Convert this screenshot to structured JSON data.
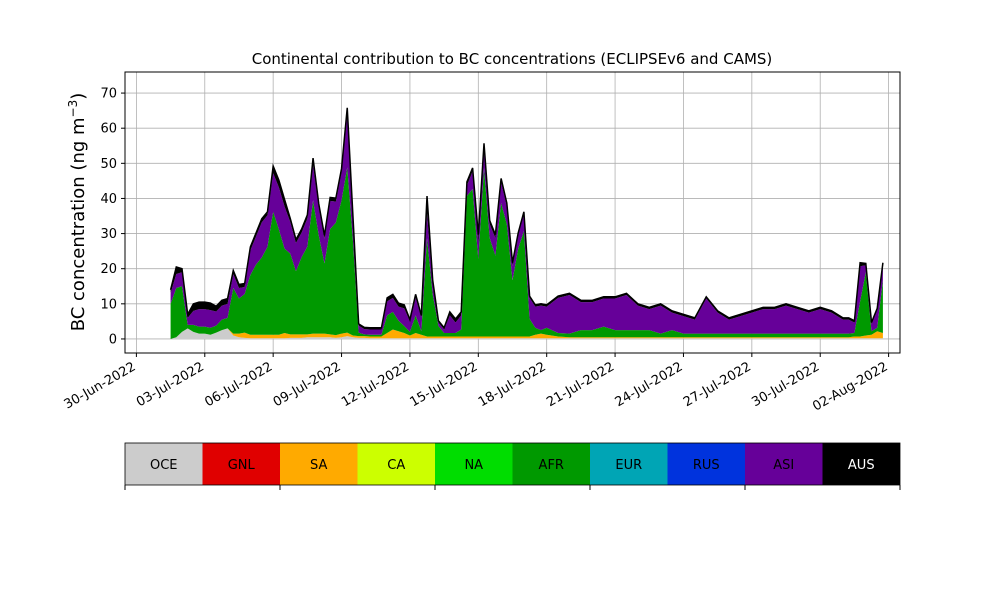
{
  "chart_data": {
    "type": "area",
    "stacked": true,
    "title": "Continental contribution to BC concentrations (ECLIPSEv6 and CAMS)",
    "xlabel": "",
    "ylabel_main": "BC concentration (ng m",
    "ylabel_sup": "−3",
    "ylabel_end": ")",
    "xlim": [
      "2022-06-29T12:00",
      "2022-08-02T12:00"
    ],
    "ylim": [
      -4,
      76
    ],
    "grid": true,
    "x_ticks": [
      "2022-06-30",
      "2022-07-03",
      "2022-07-06",
      "2022-07-09",
      "2022-07-12",
      "2022-07-15",
      "2022-07-18",
      "2022-07-21",
      "2022-07-24",
      "2022-07-27",
      "2022-07-30",
      "2022-08-02"
    ],
    "x_tick_labels": [
      "30-Jun-2022",
      "03-Jul-2022",
      "06-Jul-2022",
      "09-Jul-2022",
      "12-Jul-2022",
      "15-Jul-2022",
      "18-Jul-2022",
      "21-Jul-2022",
      "24-Jul-2022",
      "27-Jul-2022",
      "30-Jul-2022",
      "02-Aug-2022"
    ],
    "y_ticks": [
      0,
      10,
      20,
      30,
      40,
      50,
      60,
      70
    ],
    "x": [
      "2022-07-01T12:00",
      "2022-07-01T18:00",
      "2022-07-02T00:00",
      "2022-07-02T06:00",
      "2022-07-02T12:00",
      "2022-07-02T18:00",
      "2022-07-03T00:00",
      "2022-07-03T06:00",
      "2022-07-03T12:00",
      "2022-07-03T18:00",
      "2022-07-04T00:00",
      "2022-07-04T06:00",
      "2022-07-04T12:00",
      "2022-07-04T18:00",
      "2022-07-05T00:00",
      "2022-07-05T06:00",
      "2022-07-05T12:00",
      "2022-07-05T18:00",
      "2022-07-06T00:00",
      "2022-07-06T06:00",
      "2022-07-06T12:00",
      "2022-07-06T18:00",
      "2022-07-07T00:00",
      "2022-07-07T06:00",
      "2022-07-07T12:00",
      "2022-07-07T18:00",
      "2022-07-08T00:00",
      "2022-07-08T06:00",
      "2022-07-08T12:00",
      "2022-07-08T18:00",
      "2022-07-09T00:00",
      "2022-07-09T06:00",
      "2022-07-09T12:00",
      "2022-07-09T18:00",
      "2022-07-10T00:00",
      "2022-07-10T06:00",
      "2022-07-10T12:00",
      "2022-07-10T18:00",
      "2022-07-11T00:00",
      "2022-07-11T06:00",
      "2022-07-11T12:00",
      "2022-07-11T18:00",
      "2022-07-12T00:00",
      "2022-07-12T06:00",
      "2022-07-12T12:00",
      "2022-07-12T18:00",
      "2022-07-13T00:00",
      "2022-07-13T06:00",
      "2022-07-13T12:00",
      "2022-07-13T18:00",
      "2022-07-14T00:00",
      "2022-07-14T06:00",
      "2022-07-14T12:00",
      "2022-07-14T18:00",
      "2022-07-15T00:00",
      "2022-07-15T06:00",
      "2022-07-15T12:00",
      "2022-07-15T18:00",
      "2022-07-16T00:00",
      "2022-07-16T06:00",
      "2022-07-16T12:00",
      "2022-07-16T18:00",
      "2022-07-17T00:00",
      "2022-07-17T06:00",
      "2022-07-17T12:00",
      "2022-07-17T18:00",
      "2022-07-18T00:00",
      "2022-07-18T12:00",
      "2022-07-19T00:00",
      "2022-07-19T12:00",
      "2022-07-20T00:00",
      "2022-07-20T12:00",
      "2022-07-21T00:00",
      "2022-07-21T12:00",
      "2022-07-22T00:00",
      "2022-07-22T12:00",
      "2022-07-23T00:00",
      "2022-07-23T12:00",
      "2022-07-24T00:00",
      "2022-07-24T12:00",
      "2022-07-25T00:00",
      "2022-07-25T12:00",
      "2022-07-26T00:00",
      "2022-07-26T12:00",
      "2022-07-27T00:00",
      "2022-07-27T12:00",
      "2022-07-28T00:00",
      "2022-07-28T12:00",
      "2022-07-29T00:00",
      "2022-07-29T12:00",
      "2022-07-30T00:00",
      "2022-07-30T12:00",
      "2022-07-31T00:00",
      "2022-07-31T06:00",
      "2022-07-31T12:00",
      "2022-07-31T18:00",
      "2022-08-01T00:00",
      "2022-08-01T06:00",
      "2022-08-01T12:00",
      "2022-08-01T18:00"
    ],
    "series": [
      {
        "name": "OCE",
        "color": "#cccccc",
        "values": [
          0,
          0.5,
          2,
          3,
          2,
          1.5,
          1.5,
          1.2,
          1.8,
          2.5,
          3,
          1,
          0.5,
          0.3,
          0.2,
          0.2,
          0.2,
          0.2,
          0.2,
          0.2,
          0.2,
          0.3,
          0.3,
          0.3,
          0.5,
          0.5,
          0.5,
          0.5,
          0.5,
          0.3,
          0.5,
          0.8,
          0.5,
          0.3,
          0.3,
          0.2,
          0.2,
          0.2,
          0.2,
          0.2,
          0.2,
          0.2,
          0.2,
          0.2,
          0.2,
          0.2,
          0.2,
          0.2,
          0.2,
          0.2,
          0.2,
          0.2,
          0.2,
          0.2,
          0.2,
          0.2,
          0.2,
          0.2,
          0.2,
          0.2,
          0.2,
          0.2,
          0.2,
          0.2,
          0.2,
          0.2,
          0.2,
          0.2,
          0.2,
          0.2,
          0.2,
          0.2,
          0.2,
          0.2,
          0.2,
          0.2,
          0.2,
          0.2,
          0.2,
          0.2,
          0.2,
          0.2,
          0.2,
          0.2,
          0.2,
          0.2,
          0.2,
          0.2,
          0.2,
          0.2,
          0.2,
          0.2,
          0.2,
          0.2,
          0.2,
          0.2,
          0.2,
          0.2,
          0.2,
          0.2
        ]
      },
      {
        "name": "GNL",
        "color": "#e00000",
        "values": [
          0,
          0,
          0,
          0,
          0,
          0,
          0,
          0,
          0,
          0,
          0,
          0,
          0,
          0,
          0,
          0,
          0,
          0,
          0,
          0,
          0,
          0,
          0,
          0,
          0,
          0,
          0,
          0,
          0,
          0,
          0,
          0,
          0,
          0,
          0,
          0,
          0,
          0,
          0,
          0,
          0,
          0,
          0,
          0,
          0,
          0,
          0,
          0,
          0,
          0,
          0,
          0,
          0,
          0,
          0,
          0,
          0,
          0,
          0,
          0,
          0,
          0,
          0,
          0,
          0,
          0,
          0,
          0,
          0,
          0,
          0,
          0,
          0,
          0,
          0,
          0,
          0,
          0,
          0,
          0,
          0,
          0,
          0,
          0,
          0,
          0,
          0,
          0,
          0,
          0,
          0,
          0,
          0,
          0,
          0,
          0,
          0,
          0,
          0,
          0
        ]
      },
      {
        "name": "SA",
        "color": "#ffaa00",
        "values": [
          0,
          0,
          0,
          0,
          0,
          0,
          0,
          0,
          0,
          0,
          0,
          0.5,
          1,
          1.5,
          1,
          1,
          1,
          1,
          1,
          1,
          1.5,
          1,
          1,
          1,
          0.8,
          1,
          1,
          1,
          0.8,
          0.8,
          1,
          1,
          0.5,
          0.5,
          0.5,
          0.5,
          0.5,
          0.5,
          1.5,
          2.5,
          2,
          1.5,
          0.8,
          1.5,
          1,
          0.5,
          0.5,
          0.5,
          0.5,
          0.5,
          0.5,
          0.5,
          0.5,
          0.5,
          0.5,
          0.5,
          0.5,
          0.5,
          0.5,
          0.5,
          0.5,
          0.5,
          0.5,
          0.5,
          1,
          1.3,
          1,
          0.5,
          0.3,
          0.3,
          0.3,
          0.3,
          0.3,
          0.3,
          0.3,
          0.3,
          0.3,
          0.3,
          0.3,
          0.3,
          0.3,
          0.3,
          0.3,
          0.3,
          0.3,
          0.3,
          0.3,
          0.3,
          0.3,
          0.3,
          0.3,
          0.3,
          0.3,
          0.3,
          0.5,
          0.5,
          0.8,
          1,
          2,
          1.5
        ]
      },
      {
        "name": "CA",
        "color": "#ccff00",
        "values": [
          0,
          0,
          0,
          0,
          0,
          0,
          0,
          0,
          0,
          0,
          0,
          0,
          0,
          0,
          0,
          0,
          0,
          0,
          0,
          0,
          0,
          0,
          0,
          0,
          0,
          0,
          0,
          0,
          0,
          0,
          0,
          0,
          0,
          0,
          0,
          0,
          0,
          0,
          0,
          0,
          0,
          0,
          0,
          0,
          0,
          0,
          0,
          0,
          0,
          0,
          0,
          0,
          0,
          0,
          0,
          0,
          0,
          0,
          0,
          0,
          0,
          0,
          0,
          0,
          0,
          0,
          0,
          0,
          0,
          0,
          0,
          0,
          0,
          0,
          0,
          0,
          0,
          0,
          0,
          0,
          0,
          0,
          0,
          0,
          0,
          0,
          0,
          0,
          0,
          0,
          0,
          0,
          0,
          0,
          0,
          0,
          0,
          0,
          0,
          0
        ]
      },
      {
        "name": "NA",
        "color": "#00dd00",
        "values": [
          0,
          0,
          0,
          0,
          0,
          0,
          0,
          0,
          0,
          0,
          0,
          0,
          0,
          0,
          0,
          0,
          0,
          0,
          0,
          0,
          0,
          0,
          0,
          0,
          0,
          0,
          0,
          0,
          0,
          0,
          0,
          0,
          0,
          0,
          0,
          0,
          0,
          0,
          0,
          0,
          0,
          0,
          0,
          0,
          0,
          0,
          0,
          0,
          0,
          0,
          0,
          0,
          0,
          0,
          0,
          0,
          0,
          0,
          0,
          0,
          0,
          0,
          0,
          0,
          0,
          0,
          0,
          0,
          0,
          0,
          0,
          0,
          0,
          0,
          0,
          0,
          0,
          0,
          0,
          0,
          0,
          0,
          0,
          0,
          0,
          0,
          0,
          0,
          0,
          0,
          0,
          0,
          0,
          0,
          0,
          0,
          0,
          0,
          0,
          0
        ]
      },
      {
        "name": "AFR",
        "color": "#009900",
        "values": [
          10,
          14,
          13,
          1,
          2,
          2,
          2,
          2,
          2,
          3,
          3,
          13,
          10,
          11,
          17,
          20,
          22,
          25,
          35,
          30,
          24,
          23,
          18,
          22,
          25,
          38,
          28,
          20,
          30,
          32,
          38,
          47,
          27,
          1,
          0.5,
          0.5,
          0.5,
          0.5,
          5,
          5,
          3,
          2,
          1,
          5,
          1,
          28,
          12,
          3,
          1,
          1,
          1,
          2,
          40,
          42,
          22,
          48,
          28,
          23,
          38,
          32,
          16,
          25,
          30,
          5,
          2,
          1,
          2,
          1,
          1,
          2,
          2,
          3,
          2,
          2,
          2,
          2,
          1,
          2,
          1,
          1,
          1,
          1,
          1,
          1,
          1,
          1,
          1,
          1,
          1,
          1,
          1,
          1,
          1,
          1,
          1,
          10,
          18,
          1,
          1,
          15
        ]
      },
      {
        "name": "EUR",
        "color": "#00a5b5",
        "values": [
          0,
          0,
          0,
          0,
          0,
          0,
          0,
          0,
          0,
          0,
          0,
          0,
          0,
          0,
          0,
          0,
          0,
          0,
          0,
          0,
          0,
          0,
          0,
          0,
          0,
          0,
          0,
          0,
          0,
          0,
          0,
          0,
          0,
          0,
          0,
          0,
          0,
          0,
          0,
          0,
          0,
          0,
          0,
          0,
          0,
          0,
          0,
          0,
          0,
          0,
          0,
          0,
          0,
          0,
          0,
          0,
          0,
          0,
          0,
          0,
          0,
          0,
          0,
          0,
          0,
          0,
          0,
          0,
          0,
          0,
          0,
          0,
          0,
          0,
          0,
          0,
          0,
          0,
          0,
          0,
          0,
          0,
          0,
          0,
          0,
          0,
          0,
          0,
          0,
          0,
          0,
          0,
          0,
          0,
          0,
          0,
          0,
          0,
          0,
          0
        ]
      },
      {
        "name": "RUS",
        "color": "#0033dd",
        "values": [
          0,
          0,
          0,
          0,
          0,
          0,
          0,
          0,
          0,
          0,
          0,
          0,
          0,
          0,
          0,
          0,
          0,
          0,
          0,
          0,
          0,
          0,
          0,
          0,
          0,
          0,
          0,
          0,
          0,
          0,
          0,
          0,
          0,
          0,
          0,
          0,
          0,
          0,
          0,
          0,
          0,
          0,
          0,
          0,
          0,
          0,
          0,
          0,
          0,
          0,
          0,
          0,
          0,
          0,
          0,
          0,
          0,
          0,
          0,
          0,
          0,
          0,
          0,
          0,
          0,
          0,
          0,
          0,
          0,
          0,
          0,
          0,
          0,
          0,
          0,
          0,
          0,
          0,
          0,
          0,
          0,
          0,
          0,
          0,
          0,
          0,
          0,
          0,
          0,
          0,
          0,
          0,
          0,
          0,
          0,
          0,
          0,
          0,
          0,
          0
        ]
      },
      {
        "name": "ASI",
        "color": "#660099",
        "values": [
          3,
          4,
          4,
          2,
          4,
          5,
          5,
          5,
          4,
          4,
          4,
          4,
          3,
          2,
          7,
          8,
          10,
          9,
          11,
          12,
          12,
          9,
          8,
          7,
          8,
          10,
          8,
          7,
          8,
          6,
          8,
          15,
          6,
          2,
          1.5,
          1.5,
          1.5,
          1.5,
          4,
          4,
          4,
          5,
          3,
          5,
          4,
          7,
          3,
          1,
          1,
          5,
          3,
          4,
          3,
          5,
          5,
          5,
          4,
          5,
          6,
          5,
          4,
          4,
          5,
          6,
          6,
          7,
          6,
          10,
          11,
          8,
          8,
          8,
          9,
          10,
          7,
          6,
          8,
          5,
          5,
          4,
          10,
          6,
          4,
          5,
          6,
          7,
          7,
          8,
          7,
          6,
          7,
          6,
          4,
          4,
          3,
          10,
          2,
          2,
          5,
          4
        ]
      },
      {
        "name": "AUS",
        "color": "#000000",
        "values": [
          1,
          2,
          1,
          1,
          2,
          2,
          2,
          2,
          1.5,
          1.5,
          1.5,
          1,
          1,
          1,
          1,
          1,
          1,
          1,
          2,
          2,
          2,
          1,
          1,
          1,
          1,
          2,
          1,
          1,
          1,
          1,
          1,
          2,
          1,
          0.5,
          0.5,
          0.5,
          0.5,
          0.5,
          1,
          1,
          1,
          1,
          0.5,
          1,
          0.5,
          5,
          1,
          0.5,
          0.5,
          1,
          1,
          1,
          1,
          1,
          2,
          2,
          1,
          1,
          1,
          1,
          1,
          0.5,
          0.5,
          0.5,
          0.5,
          0.5,
          0.5,
          0.5,
          0.5,
          0.5,
          0.5,
          0.5,
          0.5,
          0.5,
          0.5,
          0.5,
          0.5,
          0.5,
          0.5,
          0.5,
          0.5,
          0.5,
          0.5,
          0.5,
          0.5,
          0.5,
          0.5,
          0.5,
          0.5,
          0.5,
          0.5,
          0.5,
          0.5,
          0.5,
          0.5,
          1,
          0.5,
          0.5,
          0.5,
          1
        ]
      }
    ]
  },
  "legend": {
    "title": "",
    "items": [
      {
        "label": "OCE",
        "color": "#cccccc",
        "light_text": false
      },
      {
        "label": "GNL",
        "color": "#e00000",
        "light_text": false
      },
      {
        "label": "SA",
        "color": "#ffaa00",
        "light_text": false
      },
      {
        "label": "CA",
        "color": "#ccff00",
        "light_text": false
      },
      {
        "label": "NA",
        "color": "#00dd00",
        "light_text": false
      },
      {
        "label": "AFR",
        "color": "#009900",
        "light_text": false
      },
      {
        "label": "EUR",
        "color": "#00a5b5",
        "light_text": false
      },
      {
        "label": "RUS",
        "color": "#0033dd",
        "light_text": false
      },
      {
        "label": "ASI",
        "color": "#660099",
        "light_text": false
      },
      {
        "label": "AUS",
        "color": "#000000",
        "light_text": true
      }
    ]
  }
}
